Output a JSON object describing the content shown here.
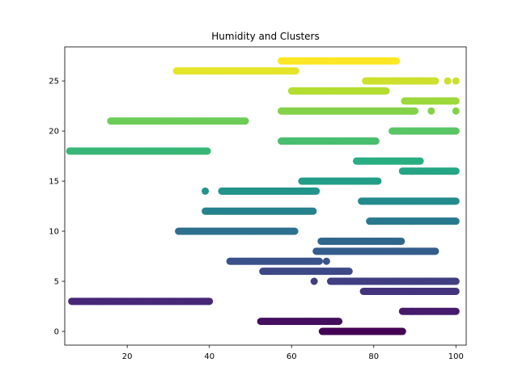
{
  "chart_data": {
    "type": "scatter",
    "title": "Humidity and Clusters",
    "xlabel": "",
    "ylabel": "",
    "xlim": [
      4.8,
      102.5
    ],
    "ylim": [
      -1.37,
      28.4
    ],
    "x_ticks": [
      20,
      40,
      60,
      80,
      100
    ],
    "y_ticks": [
      0,
      5,
      10,
      15,
      20,
      25
    ],
    "grid": false,
    "colormap": "viridis",
    "clusters": [
      {
        "y": 0,
        "x_min": 67.5,
        "x_max": 87.2
      },
      {
        "y": 1,
        "x_min": 52.5,
        "x_max": 71.5
      },
      {
        "y": 2,
        "x_min": 87.0,
        "x_max": 100.0
      },
      {
        "y": 3,
        "x_min": 6.5,
        "x_max": 40.0
      },
      {
        "y": 4,
        "x_min": 77.5,
        "x_max": 100.0
      },
      {
        "y": 5,
        "x_min": 69.5,
        "x_max": 100.0,
        "extra_x": [
          65.5
        ]
      },
      {
        "y": 6,
        "x_min": 53.0,
        "x_max": 74.2
      },
      {
        "y": 7,
        "x_min": 45.0,
        "x_max": 66.8,
        "extra_x": [
          68.5
        ]
      },
      {
        "y": 8,
        "x_min": 66.0,
        "x_max": 95.2
      },
      {
        "y": 9,
        "x_min": 67.2,
        "x_max": 86.8
      },
      {
        "y": 10,
        "x_min": 32.5,
        "x_max": 60.8
      },
      {
        "y": 11,
        "x_min": 79.0,
        "x_max": 100.0
      },
      {
        "y": 12,
        "x_min": 39.0,
        "x_max": 65.3
      },
      {
        "y": 13,
        "x_min": 77.0,
        "x_max": 100.0
      },
      {
        "y": 14,
        "x_min": 43.0,
        "x_max": 66.0,
        "extra_x": [
          39.0
        ]
      },
      {
        "y": 15,
        "x_min": 62.5,
        "x_max": 81.0
      },
      {
        "y": 16,
        "x_min": 87.0,
        "x_max": 100.0
      },
      {
        "y": 17,
        "x_min": 75.8,
        "x_max": 91.5
      },
      {
        "y": 18,
        "x_min": 6.0,
        "x_max": 39.5
      },
      {
        "y": 19,
        "x_min": 57.5,
        "x_max": 80.5
      },
      {
        "y": 20,
        "x_min": 84.5,
        "x_max": 100.0
      },
      {
        "y": 21,
        "x_min": 16.0,
        "x_max": 48.8
      },
      {
        "y": 22,
        "x_min": 57.5,
        "x_max": 90.0,
        "extra_x": [
          94.0,
          100.0
        ]
      },
      {
        "y": 23,
        "x_min": 87.5,
        "x_max": 100.0
      },
      {
        "y": 24,
        "x_min": 60.0,
        "x_max": 83.0
      },
      {
        "y": 25,
        "x_min": 78.0,
        "x_max": 95.0,
        "extra_x": [
          98.0,
          100.0
        ]
      },
      {
        "y": 26,
        "x_min": 32.0,
        "x_max": 61.0
      },
      {
        "y": 27,
        "x_min": 57.5,
        "x_max": 85.5
      }
    ]
  }
}
